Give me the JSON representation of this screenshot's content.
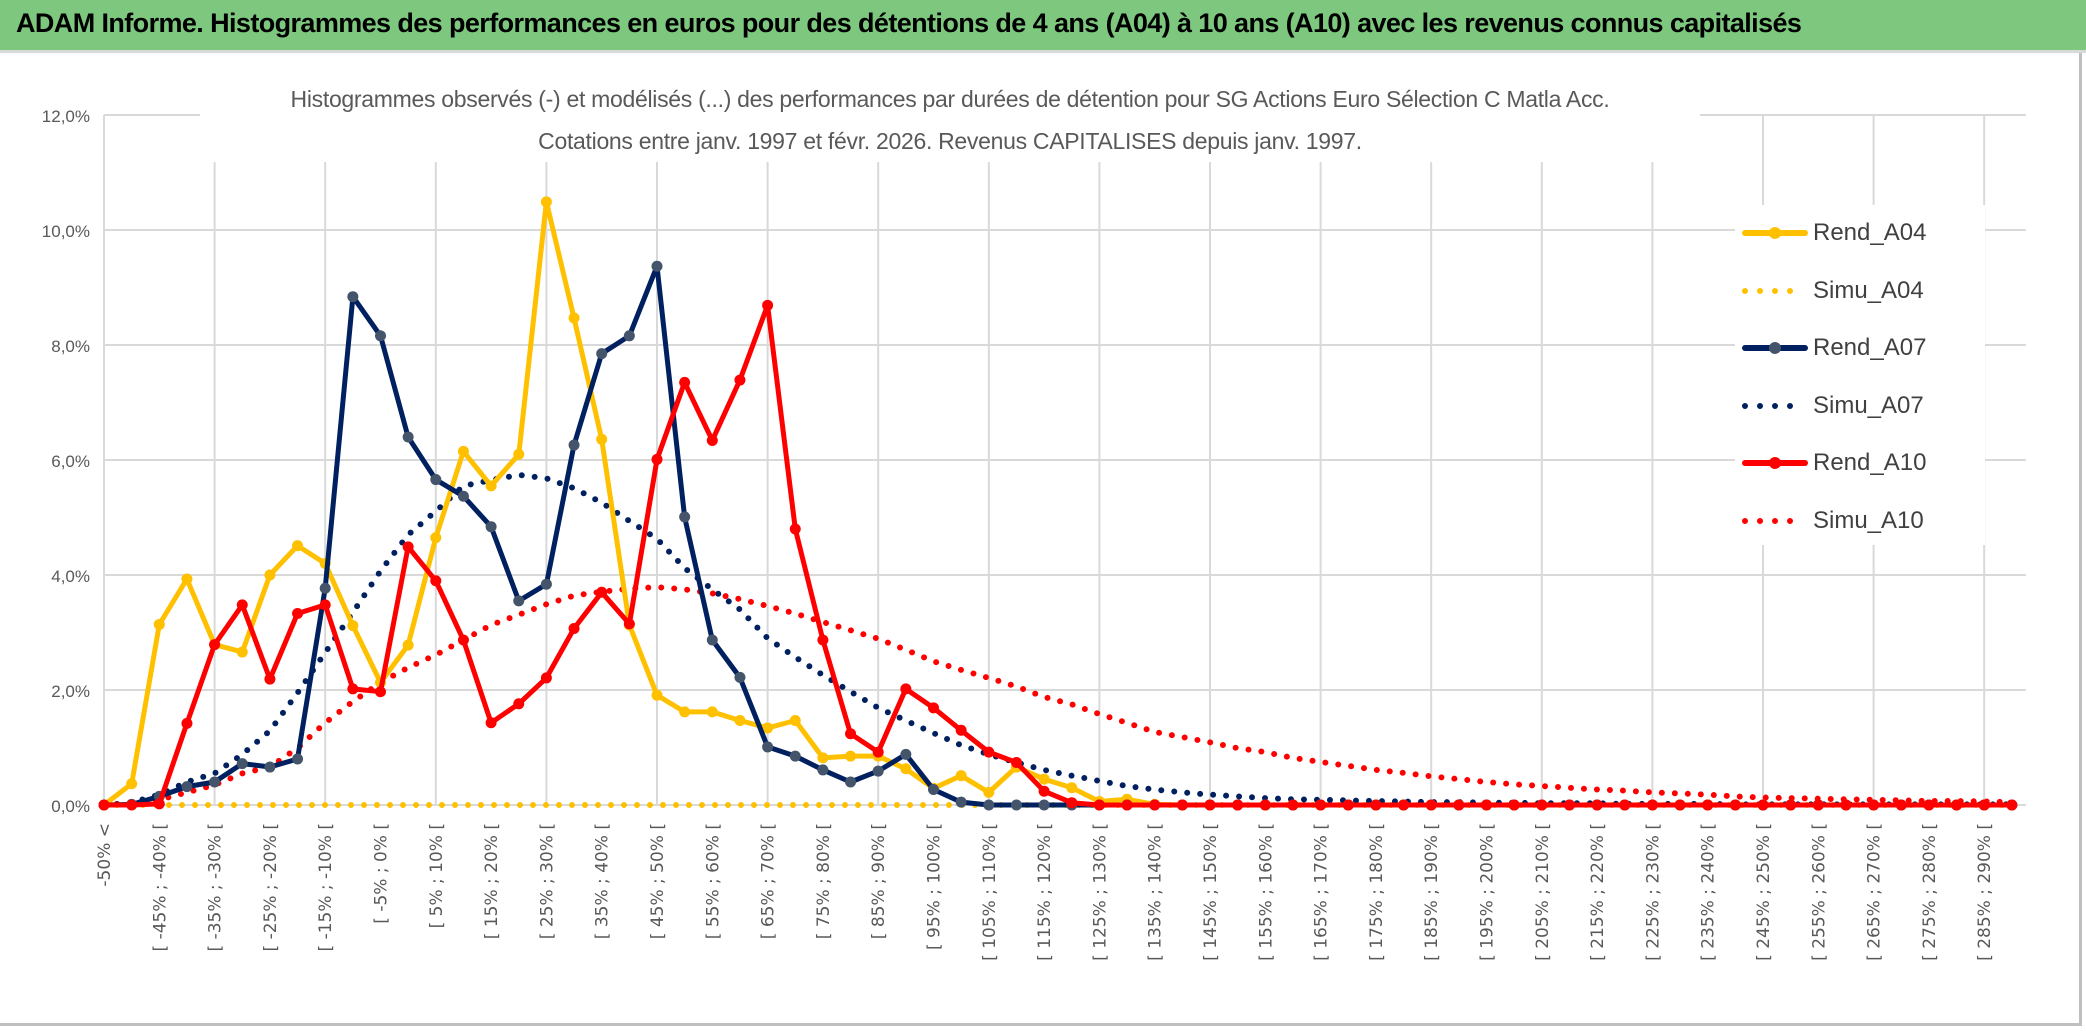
{
  "header": {
    "title": "ADAM Informe. Histogrammes des performances en euros pour des détentions de 4 ans (A04) à 10 ans (A10) avec les revenus connus capitalisés"
  },
  "chart_data": {
    "type": "line",
    "title": [
      "Histogrammes observés (-) et modélisés (...) des performances par durées de détention pour SG Actions Euro Sélection C Matla Acc.",
      "Cotations entre janv. 1997 et févr. 2026. Revenus CAPITALISES depuis janv. 1997."
    ],
    "xlabel": "",
    "ylabel": "",
    "ylim": [
      0,
      12
    ],
    "y_ticks": [
      "0,0%",
      "2,0%",
      "4,0%",
      "6,0%",
      "8,0%",
      "10,0%",
      "12,0%"
    ],
    "x_bin_lower_bounds": [
      -55,
      -50,
      -45,
      -40,
      -35,
      -30,
      -25,
      -20,
      -15,
      -10,
      -5,
      0,
      5,
      10,
      15,
      20,
      25,
      30,
      35,
      40,
      45,
      50,
      55,
      60,
      65,
      70,
      75,
      80,
      85,
      90,
      95,
      100,
      105,
      110,
      115,
      120,
      125,
      130,
      135,
      140,
      145,
      150,
      155,
      160,
      165,
      170,
      175,
      180,
      185,
      190,
      195,
      200,
      205,
      210,
      215,
      220,
      225,
      230,
      235,
      240,
      245,
      250,
      255,
      260,
      265,
      270,
      275,
      280,
      285,
      290
    ],
    "x_tick_labels": [
      "-50% <",
      "[ -45% ; -40% [",
      "[ -35% ; -30% [",
      "[ -25% ; -20% [",
      "[ -15% ; -10% [",
      "[ -5% ; 0% [",
      "[ 5% ; 10% [",
      "[ 15% ; 20% [",
      "[ 25% ; 30% [",
      "[ 35% ; 40% [",
      "[ 45% ; 50% [",
      "[ 55% ; 60% [",
      "[ 65% ; 70% [",
      "[ 75% ; 80% [",
      "[ 85% ; 90% [",
      "[ 95% ; 100% [",
      "[ 105% ; 110% [",
      "[ 115% ; 120% [",
      "[ 125% ; 130% [",
      "[ 135% ; 140% [",
      "[ 145% ; 150% [",
      "[ 155% ; 160% [",
      "[ 165% ; 170% [",
      "[ 175% ; 180% [",
      "[ 185% ; 190% [",
      "[ 195% ; 200% [",
      "[ 205% ; 210% [",
      "[ 215% ; 220% [",
      "[ 225% ; 230% [",
      "[ 235% ; 240% [",
      "[ 245% ; 250% [",
      "[ 255% ; 260% [",
      "[ 265% ; 270% [",
      "[ 275% ; 280% [",
      "[ 285% ; 290% ["
    ],
    "grid": true,
    "legend_placement": "right",
    "series": [
      {
        "name": "Rend_A04",
        "color": "#ffc000",
        "style": "solid",
        "values": [
          0,
          0.37,
          3.14,
          3.93,
          2.79,
          2.66,
          4.0,
          4.51,
          4.2,
          3.12,
          2.13,
          2.78,
          4.65,
          6.15,
          5.55,
          6.1,
          10.49,
          8.47,
          6.36,
          3.13,
          1.91,
          1.62,
          1.62,
          1.47,
          1.34,
          1.47,
          0.82,
          0.85,
          0.85,
          0.63,
          0.29,
          0.51,
          0.22,
          0.66,
          0.45,
          0.3,
          0.06,
          0.1,
          0.01,
          0,
          0,
          0,
          0,
          0,
          0,
          0,
          0,
          0,
          0,
          0,
          0,
          0,
          0,
          0,
          0,
          0,
          0,
          0,
          0,
          0,
          0,
          0,
          0,
          0,
          0,
          0,
          0,
          0,
          0,
          0
        ]
      },
      {
        "name": "Simu_A04",
        "color": "#ffc000",
        "style": "dotted",
        "values": [
          0,
          0,
          0,
          0,
          0,
          0,
          0,
          0,
          0,
          0,
          0,
          0,
          0,
          0,
          0,
          0,
          0,
          0,
          0,
          0,
          0,
          0,
          0,
          0,
          0,
          0,
          0,
          0,
          0,
          0,
          0,
          0,
          0,
          0,
          0,
          0,
          0,
          0,
          0,
          0,
          0,
          0,
          0,
          0,
          0,
          0,
          0,
          0,
          0,
          0,
          0,
          0,
          0,
          0,
          0,
          0,
          0,
          0,
          0,
          0,
          0,
          0,
          0,
          0,
          0,
          0,
          0,
          0,
          0,
          0
        ]
      },
      {
        "name": "Rend_A07",
        "color": "#002060",
        "style": "solid",
        "values": [
          0,
          0.01,
          0.15,
          0.32,
          0.4,
          0.72,
          0.66,
          0.8,
          3.77,
          8.84,
          8.16,
          6.4,
          5.66,
          5.37,
          4.84,
          3.55,
          3.84,
          6.26,
          7.85,
          8.16,
          9.37,
          5.01,
          2.87,
          2.22,
          1.01,
          0.85,
          0.61,
          0.4,
          0.59,
          0.88,
          0.27,
          0.05,
          0,
          0,
          0,
          0,
          0,
          0,
          0,
          0,
          0,
          0,
          0,
          0,
          0,
          0,
          0,
          0,
          0,
          0,
          0,
          0,
          0,
          0,
          0,
          0,
          0,
          0,
          0,
          0,
          0,
          0,
          0,
          0,
          0,
          0,
          0,
          0,
          0,
          0
        ]
      },
      {
        "name": "Simu_A07",
        "color": "#002060",
        "style": "dotted",
        "values": [
          0,
          0.04,
          0.18,
          0.4,
          0.55,
          0.88,
          1.29,
          1.95,
          2.65,
          3.35,
          4.07,
          4.7,
          5.11,
          5.55,
          5.65,
          5.74,
          5.68,
          5.51,
          5.26,
          4.94,
          4.63,
          4.12,
          3.75,
          3.4,
          2.9,
          2.57,
          2.26,
          1.97,
          1.69,
          1.47,
          1.25,
          1.04,
          0.88,
          0.74,
          0.61,
          0.51,
          0.42,
          0.33,
          0.27,
          0.22,
          0.18,
          0.15,
          0.12,
          0.1,
          0.09,
          0.08,
          0.07,
          0.06,
          0.05,
          0.05,
          0.04,
          0.04,
          0.03,
          0.03,
          0.03,
          0.02,
          0.02,
          0.02,
          0.02,
          0.01,
          0.01,
          0.01,
          0.01,
          0.01,
          0.01,
          0.01,
          0.01,
          0.01,
          0.01,
          0.01
        ]
      },
      {
        "name": "Rend_A10",
        "color": "#ff0000",
        "style": "solid",
        "values": [
          0,
          0,
          0.02,
          1.42,
          2.79,
          3.48,
          2.19,
          3.33,
          3.48,
          2.02,
          1.97,
          4.49,
          3.9,
          2.87,
          1.43,
          1.76,
          2.21,
          3.07,
          3.7,
          3.15,
          6.01,
          7.35,
          6.34,
          7.39,
          8.69,
          4.8,
          2.87,
          1.24,
          0.92,
          2.02,
          1.69,
          1.3,
          0.92,
          0.74,
          0.24,
          0.04,
          0,
          0,
          0,
          0,
          0,
          0,
          0,
          0,
          0,
          0,
          0,
          0,
          0,
          0,
          0,
          0,
          0,
          0,
          0,
          0,
          0,
          0,
          0,
          0,
          0,
          0,
          0,
          0,
          0,
          0,
          0,
          0,
          0,
          0
        ]
      },
      {
        "name": "Simu_A10",
        "color": "#ff0000",
        "style": "dotted",
        "values": [
          0,
          0.03,
          0.09,
          0.22,
          0.35,
          0.55,
          0.66,
          0.99,
          1.43,
          1.8,
          2.13,
          2.39,
          2.61,
          2.87,
          3.13,
          3.31,
          3.49,
          3.64,
          3.71,
          3.76,
          3.79,
          3.75,
          3.68,
          3.58,
          3.46,
          3.33,
          3.18,
          3.04,
          2.89,
          2.7,
          2.5,
          2.35,
          2.21,
          2.06,
          1.88,
          1.75,
          1.58,
          1.43,
          1.27,
          1.18,
          1.09,
          0.99,
          0.92,
          0.82,
          0.75,
          0.68,
          0.61,
          0.56,
          0.5,
          0.45,
          0.4,
          0.36,
          0.33,
          0.3,
          0.27,
          0.25,
          0.22,
          0.2,
          0.18,
          0.15,
          0.13,
          0.12,
          0.11,
          0.1,
          0.09,
          0.08,
          0.07,
          0.07,
          0.06,
          0.05
        ]
      }
    ]
  }
}
